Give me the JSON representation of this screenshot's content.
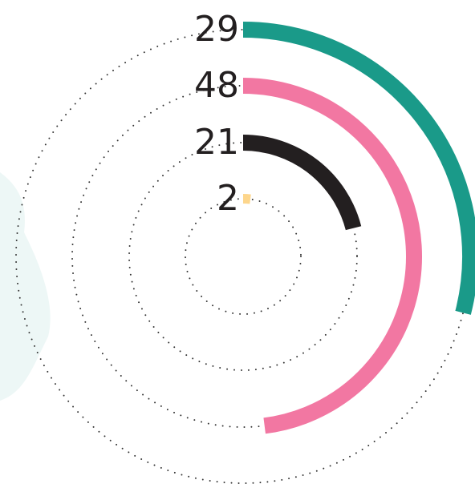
{
  "chart_data": {
    "type": "radial_bar",
    "values": [
      29,
      48,
      21,
      2
    ],
    "colors": [
      "#1a9a89",
      "#f277a2",
      "#231f20",
      "#fdd68c"
    ]
  }
}
